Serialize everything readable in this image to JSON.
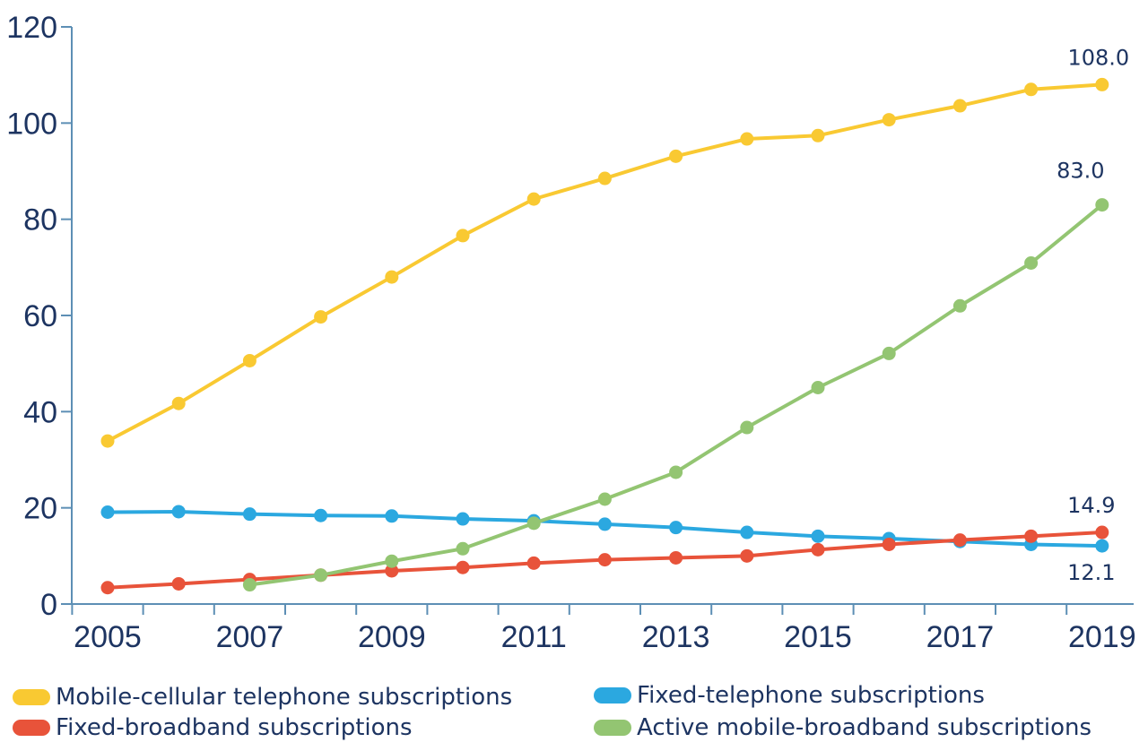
{
  "chart_data": {
    "type": "line",
    "x": [
      2005,
      2006,
      2007,
      2008,
      2009,
      2010,
      2011,
      2012,
      2013,
      2014,
      2015,
      2016,
      2017,
      2018,
      2019
    ],
    "x_tick_labels": [
      "2005",
      "2007",
      "2009",
      "2011",
      "2013",
      "2015",
      "2017",
      "2019"
    ],
    "ylim": [
      0,
      120
    ],
    "y_ticks": [
      0,
      20,
      40,
      60,
      80,
      100,
      120
    ],
    "grid": false,
    "legend_position": "bottom",
    "series": [
      {
        "name": "Mobile-cellular telephone subscriptions",
        "color": "#f9c932",
        "values": [
          33.9,
          41.7,
          50.6,
          59.7,
          68.0,
          76.6,
          84.2,
          88.5,
          93.1,
          96.7,
          97.4,
          100.7,
          103.6,
          107.0,
          108.0
        ],
        "end_label": "108.0"
      },
      {
        "name": "Fixed-telephone subscriptions",
        "color": "#2ba8e0",
        "values": [
          19.1,
          19.2,
          18.7,
          18.4,
          18.3,
          17.7,
          17.3,
          16.6,
          15.9,
          14.9,
          14.1,
          13.6,
          13.0,
          12.4,
          12.1
        ],
        "end_label": "12.1"
      },
      {
        "name": "Fixed-broadband subscriptions",
        "color": "#e8533a",
        "values": [
          3.4,
          4.2,
          5.1,
          6.0,
          6.9,
          7.6,
          8.5,
          9.2,
          9.6,
          10.0,
          11.3,
          12.4,
          13.3,
          14.1,
          14.9
        ],
        "end_label": "14.9"
      },
      {
        "name": "Active mobile-broadband subscriptions",
        "color": "#93c572",
        "values": [
          null,
          null,
          4.0,
          6.0,
          8.9,
          11.5,
          16.8,
          21.8,
          27.4,
          36.7,
          45.0,
          52.1,
          62.0,
          70.9,
          83.0
        ],
        "end_label": "83.0"
      }
    ]
  }
}
